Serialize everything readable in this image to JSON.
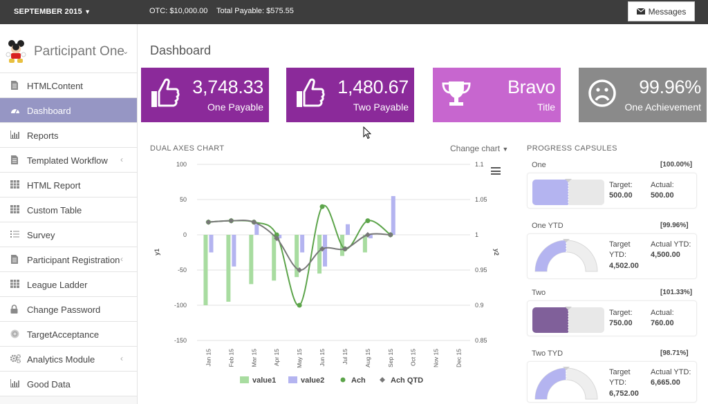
{
  "topbar": {
    "period": "SEPTEMBER 2015",
    "otc": "OTC: $10,000.00",
    "total_payable": "Total Payable: $575.55",
    "messages_label": "Messages"
  },
  "profile": {
    "name": "Participant One"
  },
  "sidebar": {
    "items": [
      {
        "label": "HTMLContent",
        "icon": "file-icon"
      },
      {
        "label": "Dashboard",
        "icon": "dashboard-icon",
        "active": true
      },
      {
        "label": "Reports",
        "icon": "bar-chart-icon"
      },
      {
        "label": "Templated Workflow",
        "icon": "file-icon",
        "submenu": true
      },
      {
        "label": "HTML Report",
        "icon": "table-icon"
      },
      {
        "label": "Custom Table",
        "icon": "table-icon"
      },
      {
        "label": "Survey",
        "icon": "list-icon"
      },
      {
        "label": "Participant Registration",
        "icon": "file-icon",
        "submenu": true
      },
      {
        "label": "League Ladder",
        "icon": "table-icon"
      },
      {
        "label": "Change Password",
        "icon": "lock-icon"
      },
      {
        "label": "TargetAcceptance",
        "icon": "target-icon"
      },
      {
        "label": "Analytics Module",
        "icon": "gears-icon",
        "submenu": true
      },
      {
        "label": "Good Data",
        "icon": "bar-chart-icon"
      }
    ]
  },
  "main": {
    "title": "Dashboard",
    "tiles": [
      {
        "value": "3,748.33",
        "label": "One Payable",
        "icon": "thumbs-up-icon",
        "color": "#8b2a9a"
      },
      {
        "value": "1,480.67",
        "label": "Two Payable",
        "icon": "thumbs-up-icon",
        "color": "#8b2a9a"
      },
      {
        "value": "Bravo",
        "label": "Title",
        "icon": "trophy-icon",
        "color": "#c766cf"
      },
      {
        "value": "99.96%",
        "label": "One Achievement",
        "icon": "sad-face-icon",
        "color": "#8a8a8a"
      }
    ],
    "chart_title": "DUAL AXES CHART",
    "change_chart_label": "Change chart",
    "progress_title": "PROGRESS CAPSULES"
  },
  "chart_data": {
    "type": "bar",
    "title": "DUAL AXES CHART",
    "categories": [
      "Jan 15",
      "Feb 15",
      "Mar 15",
      "Apr 15",
      "May 15",
      "Jun 15",
      "Jul 15",
      "Aug 15",
      "Sep 15",
      "Oct 15",
      "Nov 15",
      "Dec 15"
    ],
    "ylabel": "y1",
    "y2label": "y2",
    "ylim": [
      -150,
      100
    ],
    "y2lim": [
      0.85,
      1.1
    ],
    "y_ticks": [
      "100",
      "50",
      "0",
      "-50",
      "-100",
      "-150"
    ],
    "y2_ticks": [
      "1.1",
      "1.05",
      "1",
      "0.95",
      "0.9",
      "0.85"
    ],
    "grid": true,
    "legend_position": "bottom",
    "series": [
      {
        "name": "value1",
        "type": "bar",
        "axis": "y1",
        "color": "#a8dca0",
        "values": [
          -100,
          -95,
          -70,
          -65,
          -60,
          -55,
          -30,
          -25,
          null,
          null,
          null,
          null
        ]
      },
      {
        "name": "value2",
        "type": "bar",
        "axis": "y1",
        "color": "#b4b4f0",
        "values": [
          -25,
          -45,
          15,
          -5,
          -25,
          -45,
          15,
          -5,
          55,
          null,
          null,
          null
        ]
      },
      {
        "name": "Ach",
        "type": "spline",
        "axis": "y2",
        "color": "#5ca44a",
        "values": [
          1.018,
          1.02,
          1.018,
          1.0,
          0.9,
          1.04,
          0.98,
          1.02,
          1.0,
          null,
          null,
          null
        ]
      },
      {
        "name": "Ach QTD",
        "type": "spline",
        "axis": "y2",
        "color": "#777777",
        "values": [
          1.018,
          1.02,
          1.018,
          0.995,
          0.95,
          0.98,
          0.98,
          1.0,
          1.0,
          null,
          null,
          null
        ]
      }
    ]
  },
  "capsules": [
    {
      "label": "One",
      "pct": "[100.00%]",
      "kind": "bar",
      "fill": 1.0,
      "color": "#b4b4f0",
      "target_label": "Target:",
      "target_value": "500.00",
      "actual_label": "Actual:",
      "actual_value": "500.00"
    },
    {
      "label": "One YTD",
      "pct": "[99.96%]",
      "kind": "gauge",
      "fill": 0.9996,
      "color": "#b4b4f0",
      "target_label": "Target YTD:",
      "target_value": "4,502.00",
      "actual_label": "Actual YTD:",
      "actual_value": "4,500.00"
    },
    {
      "label": "Two",
      "pct": "[101.33%]",
      "kind": "bar",
      "fill": 1.0,
      "color": "#80609a",
      "target_label": "Target:",
      "target_value": "750.00",
      "actual_label": "Actual:",
      "actual_value": "760.00"
    },
    {
      "label": "Two TYD",
      "pct": "[98.71%]",
      "kind": "gauge",
      "fill": 0.9871,
      "color": "#b4b4f0",
      "target_label": "Target YTD:",
      "target_value": "6,752.00",
      "actual_label": "Actual YTD:",
      "actual_value": "6,665.00"
    }
  ]
}
